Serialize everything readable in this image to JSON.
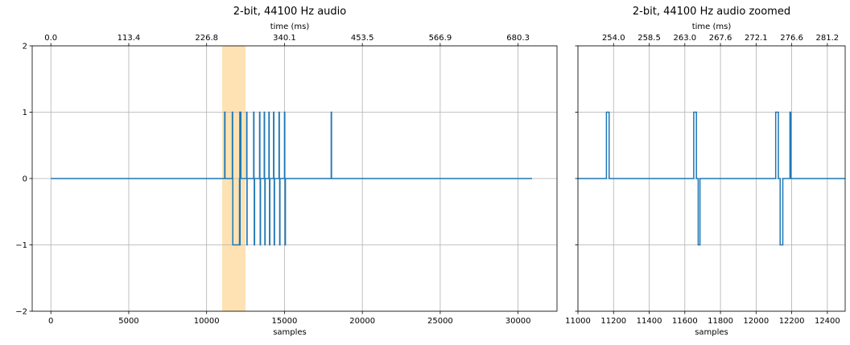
{
  "chart_data": [
    {
      "type": "line",
      "title": "2-bit, 44100 Hz audio",
      "xlabel": "samples",
      "x2label": "time (ms)",
      "ylabel": "",
      "xlim": [
        -1200,
        32500
      ],
      "ylim": [
        -2,
        2
      ],
      "grid": true,
      "step": true,
      "series_color": "#1f77b4",
      "highlight_span": {
        "x0": 11000,
        "x1": 12500,
        "color": "#fdd89a"
      },
      "xticks": [
        0,
        5000,
        10000,
        15000,
        20000,
        25000,
        30000
      ],
      "xtick_labels": [
        "0",
        "5000",
        "10000",
        "15000",
        "20000",
        "25000",
        "30000"
      ],
      "yticks": [
        -2,
        -1,
        0,
        1,
        2
      ],
      "ytick_labels": [
        "−2",
        "−1",
        "0",
        "1",
        "2"
      ],
      "top_ticks": [
        0,
        5000,
        10000,
        15000,
        20000,
        25000,
        30000
      ],
      "top_tick_labels": [
        "0.0",
        "113.4",
        "226.8",
        "340.1",
        "453.5",
        "566.9",
        "680.3"
      ],
      "series": [
        {
          "x": [
            0,
            11160,
            11160,
            11180,
            11180,
            11650,
            11650,
            11670,
            11670,
            11680,
            11680,
            12110,
            12110,
            12130,
            12130,
            12140,
            12140,
            12150,
            12150,
            12190,
            12190,
            12200,
            12200,
            12570,
            12570,
            12590,
            12590,
            12600,
            12600,
            13020,
            13020,
            13040,
            13040,
            13060,
            13060,
            13080,
            13080,
            13400,
            13400,
            13420,
            13420,
            13440,
            13440,
            13460,
            13460,
            13700,
            13700,
            13720,
            13720,
            13740,
            13740,
            13760,
            13760,
            14000,
            14000,
            14020,
            14020,
            14040,
            14040,
            14060,
            14060,
            14300,
            14300,
            14320,
            14320,
            14340,
            14340,
            14360,
            14360,
            14650,
            14650,
            14670,
            14670,
            14690,
            14690,
            14710,
            14710,
            15000,
            15000,
            15020,
            15020,
            15040,
            15040,
            15060,
            15060,
            18000,
            18000,
            18020,
            18020,
            30900
          ],
          "y": [
            0,
            0,
            1,
            1,
            0,
            0,
            1,
            1,
            0,
            0,
            -1,
            -1,
            0,
            0,
            1,
            1,
            -1,
            -1,
            0,
            0,
            1,
            1,
            0,
            0,
            1,
            1,
            -1,
            -1,
            0,
            0,
            1,
            1,
            0,
            0,
            -1,
            -1,
            0,
            0,
            1,
            1,
            0,
            0,
            -1,
            -1,
            0,
            0,
            1,
            1,
            0,
            0,
            -1,
            -1,
            0,
            0,
            1,
            1,
            0,
            0,
            -1,
            -1,
            0,
            0,
            1,
            1,
            0,
            0,
            -1,
            -1,
            0,
            0,
            1,
            1,
            0,
            0,
            -1,
            -1,
            0,
            0,
            1,
            1,
            0,
            0,
            -1,
            -1,
            0,
            0,
            1,
            1,
            0,
            0
          ]
        }
      ]
    },
    {
      "type": "line",
      "title": "2-bit, 44100 Hz audio zoomed",
      "xlabel": "samples",
      "x2label": "time (ms)",
      "ylabel": "",
      "xlim": [
        11000,
        12500
      ],
      "ylim": [
        -2,
        2
      ],
      "grid": true,
      "step": true,
      "series_color": "#1f77b4",
      "xticks": [
        11000,
        11200,
        11400,
        11600,
        11800,
        12000,
        12200,
        12400
      ],
      "xtick_labels": [
        "11000",
        "11200",
        "11400",
        "11600",
        "11800",
        "12000",
        "12200",
        "12400"
      ],
      "yticks": [
        -2,
        -1,
        0,
        1,
        2
      ],
      "ytick_labels": [
        "",
        "",
        "",
        "",
        ""
      ],
      "top_ticks": [
        11200,
        11400,
        11600,
        11800,
        12000,
        12200,
        12400
      ],
      "top_tick_labels": [
        "254.0",
        "258.5",
        "263.0",
        "267.6",
        "272.1",
        "276.6",
        "281.2"
      ],
      "series": [
        {
          "x": [
            11000,
            11160,
            11160,
            11175,
            11175,
            11650,
            11650,
            11665,
            11665,
            11675,
            11675,
            11685,
            11685,
            12110,
            12110,
            12125,
            12125,
            12135,
            12135,
            12150,
            12150,
            12190,
            12190,
            12195,
            12195,
            12500
          ],
          "y": [
            0,
            0,
            1,
            1,
            0,
            0,
            1,
            1,
            0,
            0,
            -1,
            -1,
            0,
            0,
            1,
            1,
            0,
            0,
            -1,
            -1,
            0,
            0,
            1,
            1,
            0,
            0
          ]
        }
      ]
    }
  ]
}
